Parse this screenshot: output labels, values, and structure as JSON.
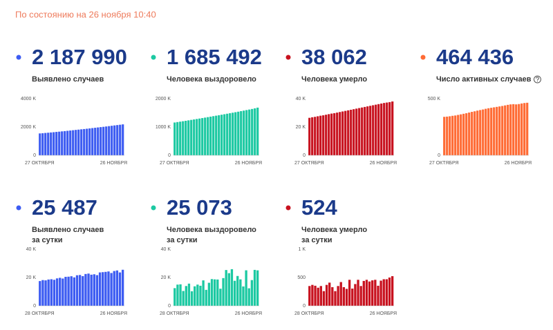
{
  "header": "По состоянию на 26 ноября 10:40",
  "chart_data": [
    {
      "type": "bar",
      "title": "2 187 990",
      "subtitle": [
        "Выявлено случаев"
      ],
      "color": "#3d5cf2",
      "categories": [
        "27 ОКТЯБРЯ",
        null,
        null,
        null,
        null,
        null,
        null,
        null,
        null,
        null,
        null,
        null,
        null,
        null,
        null,
        null,
        null,
        null,
        null,
        null,
        null,
        null,
        null,
        null,
        null,
        null,
        null,
        null,
        null,
        null,
        "26 НОЯБРЯ"
      ],
      "values": [
        1548000,
        1563000,
        1581000,
        1598000,
        1616000,
        1635000,
        1655000,
        1673000,
        1693000,
        1712000,
        1733000,
        1753000,
        1775000,
        1796000,
        1817000,
        1839000,
        1858000,
        1880000,
        1902000,
        1925000,
        1948000,
        1971000,
        1994000,
        2015000,
        2039000,
        2064000,
        2089000,
        2114000,
        2138000,
        2162000,
        2187990
      ],
      "ylim": [
        0,
        4000000
      ],
      "yticks": [
        0,
        {
          "value": 2000000,
          "label": "2000 K"
        },
        {
          "value": 4000000,
          "label": "4000 K"
        }
      ]
    },
    {
      "type": "bar",
      "title": "1 685 492",
      "subtitle": [
        "Человека выздоровело"
      ],
      "color": "#1cc9a2",
      "categories": [
        "27 ОКТЯБРЯ",
        null,
        null,
        null,
        null,
        null,
        null,
        null,
        null,
        null,
        null,
        null,
        null,
        null,
        null,
        null,
        null,
        null,
        null,
        null,
        null,
        null,
        null,
        null,
        null,
        null,
        null,
        null,
        null,
        null,
        "26 НОЯБРЯ"
      ],
      "values": [
        1160000,
        1175000,
        1190000,
        1205000,
        1220000,
        1236000,
        1252000,
        1268000,
        1284000,
        1300000,
        1316000,
        1333000,
        1350000,
        1367000,
        1384000,
        1401000,
        1418000,
        1435000,
        1452000,
        1470000,
        1488000,
        1506000,
        1524000,
        1542000,
        1561000,
        1580000,
        1599000,
        1618000,
        1638000,
        1660000,
        1685492
      ],
      "ylim": [
        0,
        2000000
      ],
      "yticks": [
        0,
        {
          "value": 1000000,
          "label": "1000 K"
        },
        {
          "value": 2000000,
          "label": "2000 K"
        }
      ]
    },
    {
      "type": "bar",
      "title": "38 062",
      "subtitle": [
        "Человека умерло"
      ],
      "color": "#c8121f",
      "categories": [
        "27 ОКТЯБРЯ",
        null,
        null,
        null,
        null,
        null,
        null,
        null,
        null,
        null,
        null,
        null,
        null,
        null,
        null,
        null,
        null,
        null,
        null,
        null,
        null,
        null,
        null,
        null,
        null,
        null,
        null,
        null,
        null,
        null,
        "26 НОЯБРЯ"
      ],
      "values": [
        26500,
        26900,
        27200,
        27600,
        28000,
        28300,
        28700,
        29100,
        29500,
        29800,
        30200,
        30600,
        31000,
        31400,
        31800,
        32200,
        32600,
        33000,
        33400,
        33800,
        34200,
        34600,
        35000,
        35400,
        35800,
        36200,
        36600,
        37000,
        37300,
        37600,
        38062
      ],
      "ylim": [
        0,
        40000
      ],
      "yticks": [
        0,
        {
          "value": 20000,
          "label": "20 K"
        },
        {
          "value": 40000,
          "label": "40 K"
        }
      ]
    },
    {
      "type": "bar",
      "title": "464 436",
      "subtitle": [
        "Число активных случаев"
      ],
      "color": "#ff6b35",
      "categories": [
        "27 ОКТЯБРЯ",
        null,
        null,
        null,
        null,
        null,
        null,
        null,
        null,
        null,
        null,
        null,
        null,
        null,
        null,
        null,
        null,
        null,
        null,
        null,
        null,
        null,
        null,
        null,
        null,
        null,
        null,
        null,
        null,
        null,
        "26 НОЯБРЯ"
      ],
      "values": [
        340000,
        342000,
        345000,
        349000,
        352000,
        357000,
        362000,
        367000,
        372000,
        378000,
        384000,
        389000,
        395000,
        400000,
        405000,
        411000,
        416000,
        420000,
        424000,
        428000,
        432000,
        436000,
        441000,
        446000,
        450000,
        452000,
        450000,
        453000,
        458000,
        462000,
        464436
      ],
      "ylim": [
        0,
        500000
      ],
      "yticks": [
        0,
        {
          "value": 500000,
          "label": "500 K"
        }
      ]
    },
    {
      "type": "bar",
      "title": "25 487",
      "subtitle": [
        "Выявлено случаев",
        "за сутки"
      ],
      "color": "#3d5cf2",
      "categories": [
        "28 ОКТЯБРЯ",
        null,
        null,
        null,
        null,
        null,
        null,
        null,
        null,
        null,
        null,
        null,
        null,
        null,
        null,
        null,
        null,
        null,
        null,
        null,
        null,
        null,
        null,
        null,
        null,
        null,
        null,
        null,
        null,
        "26 НОЯБРЯ"
      ],
      "values": [
        17500,
        18200,
        18000,
        18600,
        18800,
        18400,
        19400,
        19800,
        19300,
        20500,
        20600,
        20900,
        20100,
        21600,
        21800,
        21000,
        22500,
        22800,
        22000,
        22300,
        21700,
        23600,
        23800,
        24000,
        24300,
        23200,
        24600,
        25000,
        23600,
        25487
      ],
      "ylim": [
        0,
        40000
      ],
      "yticks": [
        0,
        {
          "value": 20000,
          "label": "20 K"
        },
        {
          "value": 40000,
          "label": "40 K"
        }
      ]
    },
    {
      "type": "bar",
      "title": "25 073",
      "subtitle": [
        "Человека выздоровело",
        "за сутки"
      ],
      "color": "#1cc9a2",
      "categories": [
        "28 ОКТЯБРЯ",
        null,
        null,
        null,
        null,
        null,
        null,
        null,
        null,
        null,
        null,
        null,
        null,
        null,
        null,
        null,
        null,
        null,
        null,
        null,
        null,
        null,
        null,
        null,
        null,
        null,
        null,
        null,
        null,
        "26 НОЯБРЯ"
      ],
      "values": [
        12500,
        15000,
        15200,
        10500,
        14000,
        15700,
        10300,
        13800,
        15000,
        14200,
        18000,
        11300,
        16300,
        18900,
        18700,
        18600,
        12100,
        19600,
        25300,
        23100,
        25900,
        17700,
        21100,
        18700,
        13700,
        25100,
        12400,
        18200,
        25400,
        25073
      ],
      "ylim": [
        0,
        40000
      ],
      "yticks": [
        0,
        {
          "value": 20000,
          "label": "20 K"
        },
        {
          "value": 40000,
          "label": "40 K"
        }
      ]
    },
    {
      "type": "bar",
      "title": "524",
      "subtitle": [
        "Человека умерло",
        "за сутки"
      ],
      "color": "#c8121f",
      "categories": [
        "28 ОКТЯБРЯ",
        null,
        null,
        null,
        null,
        null,
        null,
        null,
        null,
        null,
        null,
        null,
        null,
        null,
        null,
        null,
        null,
        null,
        null,
        null,
        null,
        null,
        null,
        null,
        null,
        null,
        null,
        null,
        null,
        "26 НОЯБРЯ"
      ],
      "values": [
        350,
        370,
        355,
        320,
        350,
        260,
        370,
        410,
        330,
        260,
        350,
        420,
        330,
        300,
        460,
        305,
        385,
        460,
        350,
        440,
        460,
        430,
        450,
        460,
        355,
        445,
        470,
        470,
        500,
        524
      ],
      "ylim": [
        0,
        1000
      ],
      "yticks": [
        0,
        500,
        {
          "value": 1000,
          "label": "1 K"
        }
      ]
    }
  ]
}
